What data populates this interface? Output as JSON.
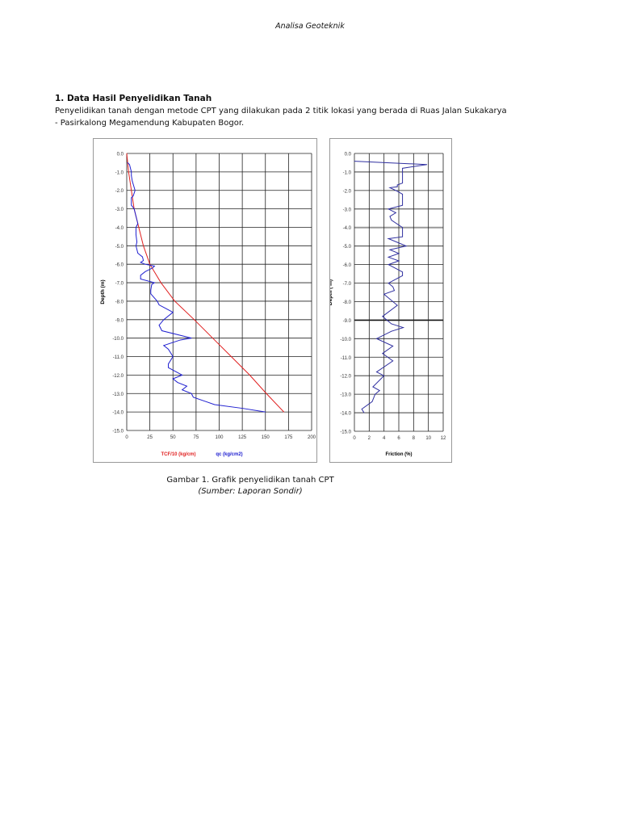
{
  "header": {
    "title": "Analisa Geoteknik"
  },
  "section": {
    "heading": "1. Data Hasil Penyelidikan Tanah",
    "paragraph": "Penyelidikan tanah dengan metode CPT yang dilakukan pada 2 titik lokasi yang berada di Ruas Jalan Sukakarya - Pasirkalong Megamendung Kabupaten Bogor."
  },
  "figure": {
    "caption": "Gambar 1. Grafik penyelidikan tanah CPT",
    "source": "(Sumber: Laporan Sondir)"
  },
  "chart_data": [
    {
      "type": "line",
      "ylabel": "Depth (m)",
      "xlim": [
        0,
        200
      ],
      "ylim": [
        -15,
        0
      ],
      "xticks": [
        "0",
        "25",
        "50",
        "75",
        "100",
        "125",
        "150",
        "175",
        "200"
      ],
      "yticks": [
        "0.0",
        "-1.0",
        "-2.0",
        "-3.0",
        "-4.0",
        "-5.0",
        "-6.0",
        "-7.0",
        "-8.0",
        "-9.0",
        "-10.0",
        "-11.0",
        "-12.0",
        "-13.0",
        "-14.0",
        "-15.0"
      ],
      "grid": true,
      "series": [
        {
          "name": "TCF/10 (kg/cm)",
          "color": "#e02020",
          "points": [
            [
              0,
              0
            ],
            [
              2,
              -1
            ],
            [
              5,
              -2
            ],
            [
              8,
              -3
            ],
            [
              13,
              -4
            ],
            [
              18,
              -5
            ],
            [
              25,
              -6
            ],
            [
              37,
              -7
            ],
            [
              52,
              -8
            ],
            [
              73,
              -9
            ],
            [
              93,
              -10
            ],
            [
              113,
              -11
            ],
            [
              133,
              -12
            ],
            [
              151,
              -13
            ],
            [
              170,
              -14
            ]
          ]
        },
        {
          "name": "qc (kg/cm2)",
          "color": "#2020d0",
          "points": [
            [
              1,
              -0.5
            ],
            [
              3,
              -0.6
            ],
            [
              5,
              -1
            ],
            [
              5,
              -1.2
            ],
            [
              6,
              -1.5
            ],
            [
              9,
              -2
            ],
            [
              7,
              -2.3
            ],
            [
              5,
              -2.4
            ],
            [
              5,
              -2.8
            ],
            [
              8,
              -3
            ],
            [
              10,
              -3.4
            ],
            [
              12,
              -3.8
            ],
            [
              10,
              -4
            ],
            [
              10,
              -4.4
            ],
            [
              11,
              -4.8
            ],
            [
              10,
              -5
            ],
            [
              12,
              -5.4
            ],
            [
              17,
              -5.6
            ],
            [
              18,
              -5.8
            ],
            [
              15,
              -5.9
            ],
            [
              20,
              -6
            ],
            [
              30,
              -6.1
            ],
            [
              28,
              -6.2
            ],
            [
              20,
              -6.4
            ],
            [
              15,
              -6.6
            ],
            [
              15,
              -6.8
            ],
            [
              30,
              -7
            ],
            [
              27,
              -7.1
            ],
            [
              26,
              -7.4
            ],
            [
              26,
              -7.6
            ],
            [
              33,
              -8
            ],
            [
              35,
              -8.2
            ],
            [
              50,
              -8.6
            ],
            [
              40,
              -9
            ],
            [
              35,
              -9.3
            ],
            [
              38,
              -9.6
            ],
            [
              70,
              -10
            ],
            [
              58,
              -10.1
            ],
            [
              40,
              -10.4
            ],
            [
              45,
              -10.6
            ],
            [
              50,
              -11
            ],
            [
              45,
              -11.4
            ],
            [
              45,
              -11.6
            ],
            [
              60,
              -12
            ],
            [
              50,
              -12.2
            ],
            [
              55,
              -12.4
            ],
            [
              65,
              -12.6
            ],
            [
              60,
              -12.8
            ],
            [
              70,
              -13
            ],
            [
              72,
              -13.2
            ],
            [
              95,
              -13.6
            ],
            [
              125,
              -13.8
            ],
            [
              150,
              -14
            ]
          ]
        }
      ]
    },
    {
      "type": "line",
      "xlabel": "Friction (%)",
      "ylabel": "Depth ( m)",
      "xlim": [
        0,
        12
      ],
      "ylim": [
        -15,
        0
      ],
      "xticks": [
        "0",
        "2",
        "4",
        "6",
        "8",
        "10",
        "12"
      ],
      "yticks": [
        "0.0",
        "-1.0",
        "-2.0",
        "-3.0",
        "-4.0",
        "-5.0",
        "-6.0",
        "-7.0",
        "-8.0",
        "-9.0",
        "-10.0",
        "-11.0",
        "-12.0",
        "-13.0",
        "-14.0",
        "-15.0"
      ],
      "grid": true,
      "series": [
        {
          "name": "Friction",
          "color": "#3030a0",
          "points": [
            [
              0,
              -0.42
            ],
            [
              9.8,
              -0.6
            ],
            [
              6.5,
              -0.8
            ],
            [
              6.5,
              -1.6
            ],
            [
              5.8,
              -1.7
            ],
            [
              5.8,
              -1.8
            ],
            [
              4.8,
              -1.85
            ],
            [
              5.6,
              -2
            ],
            [
              6.5,
              -2.2
            ],
            [
              6.5,
              -2.8
            ],
            [
              4.6,
              -3
            ],
            [
              5.6,
              -3.2
            ],
            [
              4.8,
              -3.4
            ],
            [
              5,
              -3.6
            ],
            [
              6.5,
              -4
            ],
            [
              6.5,
              -4.5
            ],
            [
              4.6,
              -4.6
            ],
            [
              7,
              -5
            ],
            [
              4.8,
              -5.2
            ],
            [
              6,
              -5.4
            ],
            [
              4.6,
              -5.6
            ],
            [
              6,
              -5.8
            ],
            [
              4.6,
              -6
            ],
            [
              6.5,
              -6.4
            ],
            [
              6.5,
              -6.6
            ],
            [
              4.6,
              -7
            ],
            [
              5.2,
              -7.2
            ],
            [
              5.4,
              -7.4
            ],
            [
              4,
              -7.6
            ],
            [
              5.8,
              -8.2
            ],
            [
              3.8,
              -8.8
            ],
            [
              5,
              -9.2
            ],
            [
              6.6,
              -9.4
            ],
            [
              5,
              -9.6
            ],
            [
              3,
              -10
            ],
            [
              5.2,
              -10.4
            ],
            [
              3.8,
              -10.8
            ],
            [
              5.2,
              -11.2
            ],
            [
              3,
              -11.8
            ],
            [
              4,
              -12
            ],
            [
              2.5,
              -12.6
            ],
            [
              3.4,
              -12.8
            ],
            [
              2.8,
              -13
            ],
            [
              2.4,
              -13.4
            ],
            [
              1,
              -13.8
            ],
            [
              1.3,
              -14
            ]
          ]
        }
      ]
    }
  ]
}
